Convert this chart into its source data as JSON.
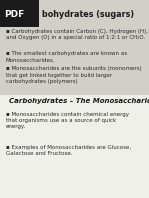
{
  "title1": "bohydrates (sugars)",
  "pdf_label": "PDF",
  "bullet1_1": "Carbohydrates contain Carbon (C), Hydrogen (H),\nand Oxygen (O) in a special ratio of 1:2:1 or CH₂O.",
  "bullet1_2": "The smallest carbohydrates are known as\nMonosaccharides.",
  "bullet1_3": "Monosaccharides are the subunits (monomers)\nthat get linked together to build larger\ncarbohydrates (polymers)",
  "title2": "Carbohydrates – The Monosaccharides",
  "bullet2_1": "Monosaccharides contain chemical energy\nthat organisms use as a source of quick\nenergy.",
  "bullet2_2": "Examples of Monosaccharides are Glucose,\nGalactose and Fructose.",
  "bg_color": "#e8e8e0",
  "top_bg": "#d0d0c8",
  "pdf_bg": "#1a1a1a",
  "pdf_text_color": "#ffffff",
  "text_color": "#2a2a2a",
  "title_color": "#1a1a1a",
  "section2_bg": "#f0f0ea",
  "fontsize_title": 5.8,
  "fontsize_body": 4.0,
  "fontsize_pdf": 6.5,
  "fontsize_title2": 5.0
}
